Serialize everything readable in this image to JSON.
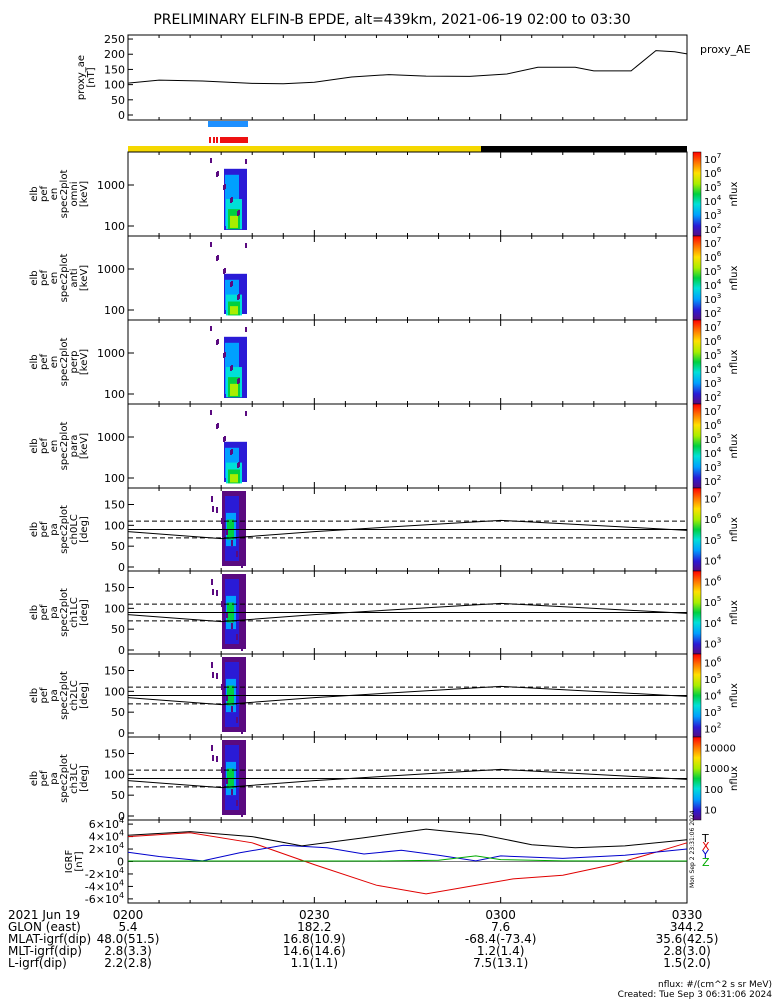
{
  "title": "PRELIMINARY ELFIN-B EPDE, alt=439km, 2021-06-19 02:00 to 03:30",
  "colors": {
    "axis": "#000000",
    "sci_zone_blue": "#1e90ff",
    "sci_zone_red": "#ee1111",
    "sunlight_yellow": "#f5d800",
    "eclipse_black": "#000000",
    "igrf_x": "#e00000",
    "igrf_y": "#0000cc",
    "igrf_z": "#00aa00",
    "igrf_t": "#000000"
  },
  "chart_data": [
    {
      "id": "proxy_ae",
      "type": "line",
      "ylabel": "proxy_ae\n[nT]",
      "right_label": "proxy_AE",
      "ylim": [
        0,
        260
      ],
      "yticks": [
        0,
        50,
        100,
        150,
        200,
        250
      ],
      "xlim": [
        0,
        90
      ],
      "series": [
        {
          "values": [
            [
              0,
              105
            ],
            [
              5,
              115
            ],
            [
              12,
              112
            ],
            [
              20,
              104
            ],
            [
              25,
              103
            ],
            [
              30,
              108
            ],
            [
              36,
              125
            ],
            [
              42,
              133
            ],
            [
              48,
              128
            ],
            [
              55,
              127
            ],
            [
              61,
              135
            ],
            [
              66,
              157
            ],
            [
              72,
              157
            ],
            [
              75,
              145
            ],
            [
              81,
              145
            ],
            [
              85,
              212
            ],
            [
              88,
              208
            ],
            [
              90,
              201
            ]
          ]
        }
      ]
    },
    {
      "id": "en_omni",
      "type": "heatmap",
      "ylabel": "elb\npef\nen\nspec2plot\nomni\n[keV]",
      "yscale": "log",
      "yticks": [
        100,
        1000
      ],
      "zlabel": "nflux",
      "zticks": [
        "10^2",
        "10^3",
        "10^4",
        "10^5",
        "10^6",
        "10^7"
      ]
    },
    {
      "id": "en_anti",
      "type": "heatmap",
      "ylabel": "elb\npef\nen\nspec2plot\nanti\n[keV]",
      "yscale": "log",
      "yticks": [
        100,
        1000
      ],
      "zlabel": "nflux",
      "zticks": [
        "10^2",
        "10^3",
        "10^4",
        "10^5",
        "10^6",
        "10^7"
      ]
    },
    {
      "id": "en_perp",
      "type": "heatmap",
      "ylabel": "elb\npef\nen\nspec2plot\nperp\n[keV]",
      "yscale": "log",
      "yticks": [
        100,
        1000
      ],
      "zlabel": "nflux",
      "zticks": [
        "10^2",
        "10^3",
        "10^4",
        "10^5",
        "10^6",
        "10^7"
      ]
    },
    {
      "id": "en_para",
      "type": "heatmap",
      "ylabel": "elb\npef\nen\nspec2plot\npara\n[keV]",
      "yscale": "log",
      "yticks": [
        100,
        1000
      ],
      "zlabel": "nflux",
      "zticks": [
        "10^2",
        "10^3",
        "10^4",
        "10^5",
        "10^6",
        "10^7"
      ]
    },
    {
      "id": "pa_ch0",
      "type": "heatmap",
      "ylabel": "elb\npef\npa\nspec2plot\nch0LC\n[deg]",
      "ylim": [
        0,
        180
      ],
      "yticks": [
        0,
        50,
        100,
        150
      ],
      "zlabel": "nflux",
      "zticks": [
        "10^4",
        "10^5",
        "10^6",
        "10^7"
      ]
    },
    {
      "id": "pa_ch1",
      "type": "heatmap",
      "ylabel": "elb\npef\npa\nspec2plot\nch1LC\n[deg]",
      "ylim": [
        0,
        180
      ],
      "yticks": [
        0,
        50,
        100,
        150
      ],
      "zlabel": "nflux",
      "zticks": [
        "10^3",
        "10^4",
        "10^5",
        "10^6"
      ]
    },
    {
      "id": "pa_ch2",
      "type": "heatmap",
      "ylabel": "elb\npef\npa\nspec2plot\nch2LC\n[deg]",
      "ylim": [
        0,
        180
      ],
      "yticks": [
        0,
        50,
        100,
        150
      ],
      "zlabel": "nflux",
      "zticks": [
        "10^2",
        "10^3",
        "10^4",
        "10^5",
        "10^6"
      ]
    },
    {
      "id": "pa_ch3",
      "type": "heatmap",
      "ylabel": "elb\npef\npa\nspec2plot\nch3LC\n[deg]",
      "ylim": [
        0,
        180
      ],
      "yticks": [
        0,
        50,
        100,
        150
      ],
      "zlabel": "nflux",
      "zticks": [
        "10",
        "100",
        "1000",
        "10000"
      ]
    },
    {
      "id": "igrf",
      "type": "line",
      "ylabel": "IGRF\n[nT]",
      "ylim": [
        -65000,
        65000
      ],
      "yticks": [
        "-6×10^4",
        "-4×10^4",
        "-2×10^4",
        "0",
        "2×10^4",
        "4×10^4",
        "6×10^4"
      ],
      "ytick_values": [
        -60000,
        -40000,
        -20000,
        0,
        20000,
        40000,
        60000
      ],
      "legend": [
        "T",
        "X",
        "Y",
        "Z"
      ],
      "series": [
        {
          "name": "X",
          "values": [
            [
              0,
              40000
            ],
            [
              10,
              46000
            ],
            [
              20,
              30000
            ],
            [
              30,
              -5000
            ],
            [
              40,
              -38000
            ],
            [
              48,
              -52000
            ],
            [
              55,
              -40000
            ],
            [
              62,
              -28000
            ],
            [
              70,
              -22000
            ],
            [
              78,
              -5000
            ],
            [
              85,
              15000
            ],
            [
              90,
              30000
            ]
          ]
        },
        {
          "name": "Y",
          "values": [
            [
              0,
              15000
            ],
            [
              5,
              8000
            ],
            [
              12,
              1000
            ],
            [
              18,
              14000
            ],
            [
              25,
              26000
            ],
            [
              32,
              22000
            ],
            [
              38,
              12000
            ],
            [
              44,
              18000
            ],
            [
              50,
              10000
            ],
            [
              56,
              1000
            ],
            [
              60,
              9000
            ],
            [
              70,
              5000
            ],
            [
              80,
              10000
            ],
            [
              90,
              20000
            ]
          ]
        },
        {
          "name": "Z",
          "values": [
            [
              0,
              800
            ],
            [
              20,
              800
            ],
            [
              40,
              800
            ],
            [
              50,
              2000
            ],
            [
              56,
              9000
            ],
            [
              60,
              3000
            ],
            [
              70,
              1000
            ],
            [
              80,
              800
            ],
            [
              90,
              800
            ]
          ]
        },
        {
          "name": "T",
          "values": [
            [
              0,
              42000
            ],
            [
              10,
              48000
            ],
            [
              20,
              40000
            ],
            [
              28,
              25000
            ],
            [
              38,
              38000
            ],
            [
              48,
              52000
            ],
            [
              57,
              43000
            ],
            [
              65,
              27000
            ],
            [
              72,
              22000
            ],
            [
              80,
              25000
            ],
            [
              90,
              35000
            ]
          ]
        }
      ]
    }
  ],
  "time_axis": {
    "tick_labels": [
      "0200",
      "0230",
      "0300",
      "0330"
    ],
    "rows": [
      {
        "label": "2021 Jun 19",
        "values": [
          "",
          "",
          "",
          ""
        ]
      },
      {
        "label": "GLON (east)",
        "values": [
          "5.4",
          "182.2",
          "7.6",
          "344.2"
        ]
      },
      {
        "label": "MLAT-igrf(dip)",
        "values": [
          "48.0(51.5)",
          "16.8(10.9)",
          "-68.4(-73.4)",
          "35.6(42.5)"
        ]
      },
      {
        "label": "MLT-igrf(dip)",
        "values": [
          "2.8(3.3)",
          "14.6(14.6)",
          "1.2(1.4)",
          "2.8(3.0)"
        ]
      },
      {
        "label": "L-igrf(dip)",
        "values": [
          "2.2(2.8)",
          "1.1(1.1)",
          "7.5(13.1)",
          "1.5(2.0)"
        ]
      }
    ]
  },
  "footer": {
    "units": "nflux: #/(cm^2 s sr MeV)",
    "created": "Created: Tue Sep  3 06:31:06 2024",
    "stamp": "Mon Sep  2 23:31:06 2024"
  }
}
